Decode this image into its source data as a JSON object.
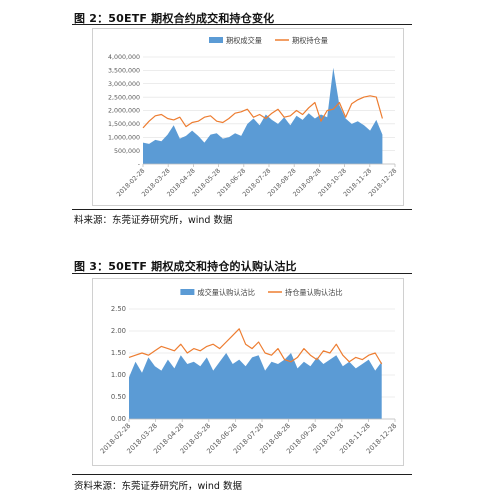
{
  "figures": [
    {
      "title": "图 2：50ETF 期权合约成交和持仓变化",
      "source": "料来源：东莞证券研究所，wind 数据"
    },
    {
      "title": "图 3：50ETF 期权成交和持仓的认购认沽比",
      "source": "资料来源：东莞证券研究所，wind 数据"
    }
  ],
  "colors": {
    "area": "#5b9bd5",
    "line": "#ed7d31",
    "axis": "#bfbfbf",
    "tick_text": "#595959"
  },
  "chart_data": [
    {
      "type": "area",
      "secondary_type": "line",
      "legend_position": "top",
      "series": [
        {
          "name": "期权成交量",
          "kind": "area",
          "values": [
            800000,
            750000,
            900000,
            850000,
            1100000,
            1450000,
            950000,
            1050000,
            1250000,
            1050000,
            800000,
            1100000,
            1150000,
            950000,
            1000000,
            1150000,
            1050000,
            1500000,
            1700000,
            1450000,
            1850000,
            1650000,
            1500000,
            1750000,
            1450000,
            1800000,
            1650000,
            1900000,
            1700000,
            1850000,
            1750000,
            3600000,
            2200000,
            1700000,
            1500000,
            1600000,
            1450000,
            1250000,
            1650000,
            1100000
          ]
        },
        {
          "name": "期权持仓量",
          "kind": "line",
          "values": [
            1350000,
            1600000,
            1800000,
            1850000,
            1700000,
            1650000,
            1750000,
            1400000,
            1550000,
            1600000,
            1750000,
            1800000,
            1600000,
            1550000,
            1700000,
            1900000,
            1950000,
            2050000,
            1750000,
            1850000,
            1700000,
            1900000,
            2050000,
            1750000,
            1800000,
            2000000,
            1850000,
            2100000,
            2300000,
            1600000,
            2000000,
            2050000,
            2300000,
            1750000,
            2250000,
            2400000,
            2500000,
            2550000,
            2500000,
            1700000
          ]
        }
      ],
      "x_ticks": [
        "2018-02-28",
        "2018-03-28",
        "2018-04-28",
        "2018-05-28",
        "2018-06-28",
        "2018-07-28",
        "2018-08-28",
        "2018-09-28",
        "2018-10-28",
        "2018-11-28",
        "2018-12-28"
      ],
      "x_span_ticks": 9.5,
      "y_ticks": [
        "-",
        "500,000",
        "1,000,000",
        "1,500,000",
        "2,000,000",
        "2,500,000",
        "3,000,000",
        "3,500,000",
        "4,000,000"
      ],
      "ylim": [
        0,
        4000000
      ],
      "grid": "horizontal"
    },
    {
      "type": "area",
      "secondary_type": "line",
      "legend_position": "top",
      "series": [
        {
          "name": "成交量认购认沽比",
          "kind": "area",
          "values": [
            0.95,
            1.3,
            1.05,
            1.4,
            1.2,
            1.1,
            1.35,
            1.15,
            1.45,
            1.25,
            1.3,
            1.2,
            1.4,
            1.1,
            1.3,
            1.5,
            1.25,
            1.35,
            1.2,
            1.4,
            1.45,
            1.1,
            1.3,
            1.25,
            1.35,
            1.5,
            1.15,
            1.3,
            1.2,
            1.4,
            1.25,
            1.35,
            1.45,
            1.2,
            1.3,
            1.15,
            1.25,
            1.35,
            1.1,
            1.3
          ]
        },
        {
          "name": "持仓量认购认沽比",
          "kind": "line",
          "values": [
            1.4,
            1.45,
            1.5,
            1.45,
            1.55,
            1.65,
            1.6,
            1.55,
            1.7,
            1.5,
            1.6,
            1.55,
            1.65,
            1.7,
            1.6,
            1.75,
            1.9,
            2.05,
            1.7,
            1.6,
            1.75,
            1.5,
            1.45,
            1.6,
            1.35,
            1.3,
            1.4,
            1.6,
            1.45,
            1.35,
            1.55,
            1.5,
            1.7,
            1.45,
            1.3,
            1.4,
            1.35,
            1.45,
            1.5,
            1.25
          ]
        }
      ],
      "x_ticks": [
        "2018-02-28",
        "2018-03-28",
        "2018-04-28",
        "2018-05-28",
        "2018-06-28",
        "2018-07-28",
        "2018-08-28",
        "2018-09-28",
        "2018-10-28",
        "2018-11-28",
        "2018-12-28"
      ],
      "x_span_ticks": 9.5,
      "y_ticks": [
        "0.00",
        "0.50",
        "1.00",
        "1.50",
        "2.00",
        "2.50"
      ],
      "ylim": [
        0,
        2.5
      ],
      "grid": "horizontal"
    }
  ]
}
